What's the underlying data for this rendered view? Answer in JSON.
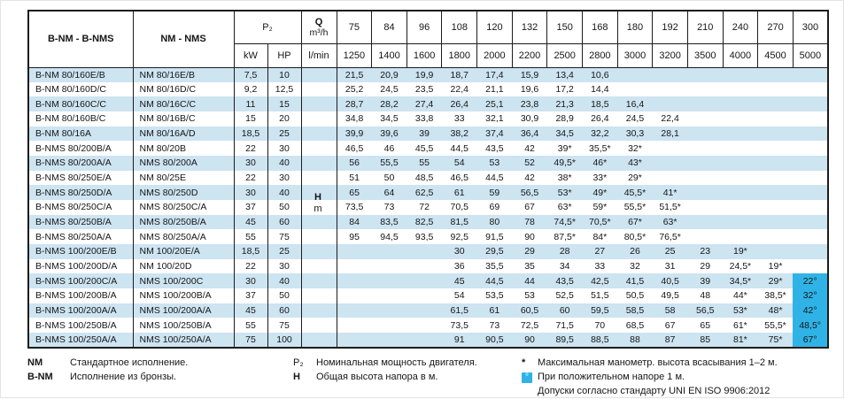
{
  "table": {
    "col_headers": {
      "bnm": "B-NM - B-NMS",
      "nm": "NM - NMS",
      "p2": "P₂",
      "kw": "kW",
      "hp": "HP",
      "q_label": "Q",
      "q_unit": "m³/h",
      "lmin": "l/min",
      "h_label": "H",
      "h_unit": "m"
    },
    "flow_m3h": [
      "75",
      "84",
      "96",
      "108",
      "120",
      "132",
      "150",
      "168",
      "180",
      "192",
      "210",
      "240",
      "270",
      "300"
    ],
    "flow_lmin": [
      "1250",
      "1400",
      "1600",
      "1800",
      "2000",
      "2200",
      "2500",
      "2800",
      "3000",
      "3200",
      "3500",
      "4000",
      "4500",
      "5000"
    ],
    "rows": [
      {
        "bnm": "B-NM 80/160E/B",
        "nm": "NM 80/16E/B",
        "kw": "7,5",
        "hp": "10",
        "values": [
          "21,5",
          "20,9",
          "19,9",
          "18,7",
          "17,4",
          "15,9",
          "13,4",
          "10,6",
          "",
          "",
          "",
          "",
          "",
          ""
        ]
      },
      {
        "bnm": "B-NM 80/160D/C",
        "nm": "NM 80/16D/C",
        "kw": "9,2",
        "hp": "12,5",
        "values": [
          "25,2",
          "24,5",
          "23,5",
          "22,4",
          "21,1",
          "19,6",
          "17,2",
          "14,4",
          "",
          "",
          "",
          "",
          "",
          ""
        ]
      },
      {
        "bnm": "B-NM 80/160C/C",
        "nm": "NM 80/16C/C",
        "kw": "11",
        "hp": "15",
        "values": [
          "28,7",
          "28,2",
          "27,4",
          "26,4",
          "25,1",
          "23,8",
          "21,3",
          "18,5",
          "16,4",
          "",
          "",
          "",
          "",
          ""
        ]
      },
      {
        "bnm": "B-NM 80/160B/C",
        "nm": "NM 80/16B/C",
        "kw": "15",
        "hp": "20",
        "values": [
          "34,8",
          "34,5",
          "33,8",
          "33",
          "32,1",
          "30,9",
          "28,9",
          "26,4",
          "24,5",
          "22,4",
          "",
          "",
          "",
          ""
        ]
      },
      {
        "bnm": "B-NM 80/16A",
        "nm": "NM 80/16A/D",
        "kw": "18,5",
        "hp": "25",
        "values": [
          "39,9",
          "39,6",
          "39",
          "38,2",
          "37,4",
          "36,4",
          "34,5",
          "32,2",
          "30,3",
          "28,1",
          "",
          "",
          "",
          ""
        ]
      },
      {
        "bnm": "B-NMS 80/200B/A",
        "nm": "NM 80/20B",
        "kw": "22",
        "hp": "30",
        "values": [
          "46,5",
          "46",
          "45,5",
          "44,5",
          "43,5",
          "42",
          "39*",
          "35,5*",
          "32*",
          "",
          "",
          "",
          "",
          ""
        ]
      },
      {
        "bnm": "B-NMS 80/200A/A",
        "nm": "NMS 80/200A",
        "kw": "30",
        "hp": "40",
        "values": [
          "56",
          "55,5",
          "55",
          "54",
          "53",
          "52",
          "49,5*",
          "46*",
          "43*",
          "",
          "",
          "",
          "",
          ""
        ]
      },
      {
        "bnm": "B-NMS 80/250E/A",
        "nm": "NM 80/25E",
        "kw": "22",
        "hp": "30",
        "values": [
          "51",
          "50",
          "48,5",
          "46,5",
          "44,5",
          "42",
          "38*",
          "33*",
          "29*",
          "",
          "",
          "",
          "",
          ""
        ]
      },
      {
        "bnm": "B-NMS 80/250D/A",
        "nm": "NMS 80/250D",
        "kw": "30",
        "hp": "40",
        "values": [
          "65",
          "64",
          "62,5",
          "61",
          "59",
          "56,5",
          "53*",
          "49*",
          "45,5*",
          "41*",
          "",
          "",
          "",
          ""
        ]
      },
      {
        "bnm": "B-NMS 80/250C/A",
        "nm": "NMS 80/250C/A",
        "kw": "37",
        "hp": "50",
        "values": [
          "73,5",
          "73",
          "72",
          "70,5",
          "69",
          "67",
          "63*",
          "59*",
          "55,5*",
          "51,5*",
          "",
          "",
          "",
          ""
        ]
      },
      {
        "bnm": "B-NMS 80/250B/A",
        "nm": "NMS 80/250B/A",
        "kw": "45",
        "hp": "60",
        "values": [
          "84",
          "83,5",
          "82,5",
          "81,5",
          "80",
          "78",
          "74,5*",
          "70,5*",
          "67*",
          "63*",
          "",
          "",
          "",
          ""
        ]
      },
      {
        "bnm": "B-NMS 80/250A/A",
        "nm": "NMS 80/250A/A",
        "kw": "55",
        "hp": "75",
        "values": [
          "95",
          "94,5",
          "93,5",
          "92,5",
          "91,5",
          "90",
          "87,5*",
          "84*",
          "80,5*",
          "76,5*",
          "",
          "",
          "",
          ""
        ]
      },
      {
        "bnm": "B-NMS 100/200E/B",
        "nm": "NM 100/20E/A",
        "kw": "18,5",
        "hp": "25",
        "values": [
          "",
          "",
          "",
          "30",
          "29,5",
          "29",
          "28",
          "27",
          "26",
          "25",
          "23",
          "19*",
          "",
          ""
        ]
      },
      {
        "bnm": "B-NMS 100/200D/A",
        "nm": "NM 100/20D",
        "kw": "22",
        "hp": "30",
        "values": [
          "",
          "",
          "",
          "36",
          "35,5",
          "35",
          "34",
          "33",
          "32",
          "31",
          "29",
          "24,5*",
          "19*",
          ""
        ]
      },
      {
        "bnm": "B-NMS 100/200C/A",
        "nm": "NMS 100/200C",
        "kw": "30",
        "hp": "40",
        "values": [
          "",
          "",
          "",
          "45",
          "44,5",
          "44",
          "43,5",
          "42,5",
          "41,5",
          "40,5",
          "39",
          "34,5*",
          "29*",
          "22°"
        ]
      },
      {
        "bnm": "B-NMS 100/200B/A",
        "nm": "NMS 100/200B/A",
        "kw": "37",
        "hp": "50",
        "values": [
          "",
          "",
          "",
          "54",
          "53,5",
          "53",
          "52,5",
          "51,5",
          "50,5",
          "49,5",
          "48",
          "44*",
          "38,5*",
          "32°"
        ]
      },
      {
        "bnm": "B-NMS 100/200A/A",
        "nm": "NMS 100/200A/A",
        "kw": "45",
        "hp": "60",
        "values": [
          "",
          "",
          "",
          "61,5",
          "61",
          "60,5",
          "60",
          "59,5",
          "58,5",
          "58",
          "56,5",
          "53*",
          "48*",
          "42°"
        ]
      },
      {
        "bnm": "B-NMS 100/250B/A",
        "nm": "NMS 100/250B/A",
        "kw": "55",
        "hp": "75",
        "values": [
          "",
          "",
          "",
          "73,5",
          "73",
          "72,5",
          "71,5",
          "70",
          "68,5",
          "67",
          "65",
          "61*",
          "55,5*",
          "48,5°"
        ]
      },
      {
        "bnm": "B-NMS 100/250A/A",
        "nm": "NMS 100/250A/A",
        "kw": "75",
        "hp": "100",
        "values": [
          "",
          "",
          "",
          "91",
          "90,5",
          "90",
          "89,5",
          "88,5",
          "88",
          "87",
          "85",
          "81*",
          "75*",
          "67°"
        ]
      }
    ]
  },
  "legend": {
    "left": [
      {
        "marker": "NM",
        "text": "Стандартное исполнение."
      },
      {
        "marker": "B-NM",
        "text": "Исполнение из бронзы."
      }
    ],
    "middle": [
      {
        "marker": "P₂",
        "text": "Номинальная мощность двигателя."
      },
      {
        "marker": "H",
        "text": "Общая высота напора в м."
      }
    ],
    "right": [
      {
        "marker": "*",
        "text": "Максимальная манометр. высота всасывания 1–2 м."
      },
      {
        "marker": "°",
        "text": "При положительном напоре 1 м."
      },
      {
        "marker": "",
        "text": "Допуски согласно стандарту UNI EN ISO 9906:2012"
      }
    ]
  },
  "colors": {
    "row_stripe": "#cde4f1",
    "note_blue": "#2fb3e6",
    "border": "#1c1c1c"
  }
}
